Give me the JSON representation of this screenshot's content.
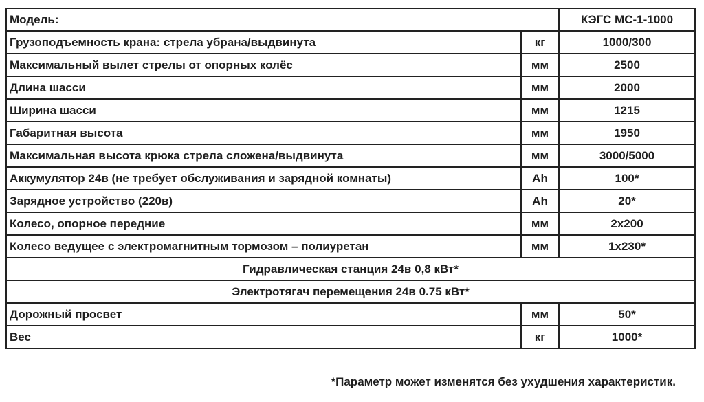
{
  "colors": {
    "background": "#ffffff",
    "text": "#1f1f1f",
    "border": "#222222"
  },
  "table": {
    "header_row": {
      "label": "Модель:",
      "value": "КЭГС МС-1-1000"
    },
    "rows": [
      {
        "label": "Грузоподъемность крана: стрела убрана/выдвинута",
        "unit": "кг",
        "value": "1000/300"
      },
      {
        "label": "Максимальный вылет стрелы от опорных колёс",
        "unit": "мм",
        "value": "2500"
      },
      {
        "label": "Длина шасси",
        "unit": "мм",
        "value": "2000"
      },
      {
        "label": "Ширина шасси",
        "unit": "мм",
        "value": "1215"
      },
      {
        "label": "Габаритная высота",
        "unit": "мм",
        "value": "1950"
      },
      {
        "label": "Максимальная высота крюка стрела сложена/выдвинута",
        "unit": "мм",
        "value": "3000/5000"
      },
      {
        "label": "Аккумулятор 24в (не требует обслуживания и зарядной комнаты)",
        "unit": "Ah",
        "value": "100*"
      },
      {
        "label": "Зарядное устройство (220в)",
        "unit": "Ah",
        "value": "20*"
      },
      {
        "label": "Колесо, опорное передние",
        "unit": "мм",
        "value": "2x200"
      },
      {
        "label": "Колесо ведущее с электромагнитным тормозом – полиуретан",
        "unit": "мм",
        "value": "1x230*"
      }
    ],
    "span_rows": [
      {
        "label": "Гидравлическая станция 24в 0,8 кВт*"
      },
      {
        "label": "Электротягач перемещения 24в 0.75 кВт*"
      }
    ],
    "bottom_rows": [
      {
        "label": "Дорожный просвет",
        "unit": "мм",
        "value": "50*"
      },
      {
        "label": "Вес",
        "unit": "кг",
        "value": "1000*"
      }
    ]
  },
  "footnote": "*Параметр может изменятся без ухудшения характеристик."
}
